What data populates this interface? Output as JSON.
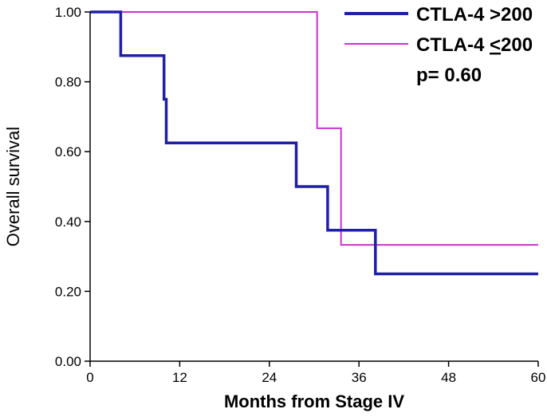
{
  "chart_data": {
    "type": "line",
    "subtype": "kaplan-meier step",
    "xlabel": "Months from Stage IV",
    "ylabel": "Overall survival",
    "xlim": [
      0,
      60
    ],
    "ylim": [
      0,
      1
    ],
    "x_ticks": [
      0,
      12,
      24,
      36,
      48,
      60
    ],
    "x_tick_labels": [
      "0",
      "12",
      "24",
      "36",
      "48",
      "60"
    ],
    "y_ticks": [
      0,
      0.2,
      0.4,
      0.6,
      0.8,
      1.0
    ],
    "y_tick_labels": [
      "0.00",
      "0.20",
      "0.40",
      "0.60",
      "0.80",
      "1.00"
    ],
    "legend_position": "top-right",
    "annotation": "p= 0.60",
    "series": [
      {
        "name": "CTLA-4 >200",
        "color": "#1f1fa8",
        "line_weight": "thick",
        "points": [
          [
            0,
            1.0
          ],
          [
            4.1,
            1.0
          ],
          [
            4.1,
            0.875
          ],
          [
            9.9,
            0.875
          ],
          [
            9.9,
            0.75
          ],
          [
            10.2,
            0.75
          ],
          [
            10.2,
            0.625
          ],
          [
            27.6,
            0.625
          ],
          [
            27.6,
            0.5
          ],
          [
            31.8,
            0.5
          ],
          [
            31.8,
            0.375
          ],
          [
            38.2,
            0.375
          ],
          [
            38.2,
            0.25
          ],
          [
            60,
            0.25
          ]
        ]
      },
      {
        "name": "CTLA-4 ≤200",
        "label_prefix": "CTLA-4 ",
        "label_symbol": "<",
        "label_suffix": "200",
        "color": "#cc33cc",
        "line_weight": "thin",
        "points": [
          [
            0,
            1.0
          ],
          [
            30.4,
            1.0
          ],
          [
            30.4,
            0.667
          ],
          [
            33.6,
            0.667
          ],
          [
            33.6,
            0.333
          ],
          [
            60,
            0.333
          ]
        ]
      }
    ]
  }
}
